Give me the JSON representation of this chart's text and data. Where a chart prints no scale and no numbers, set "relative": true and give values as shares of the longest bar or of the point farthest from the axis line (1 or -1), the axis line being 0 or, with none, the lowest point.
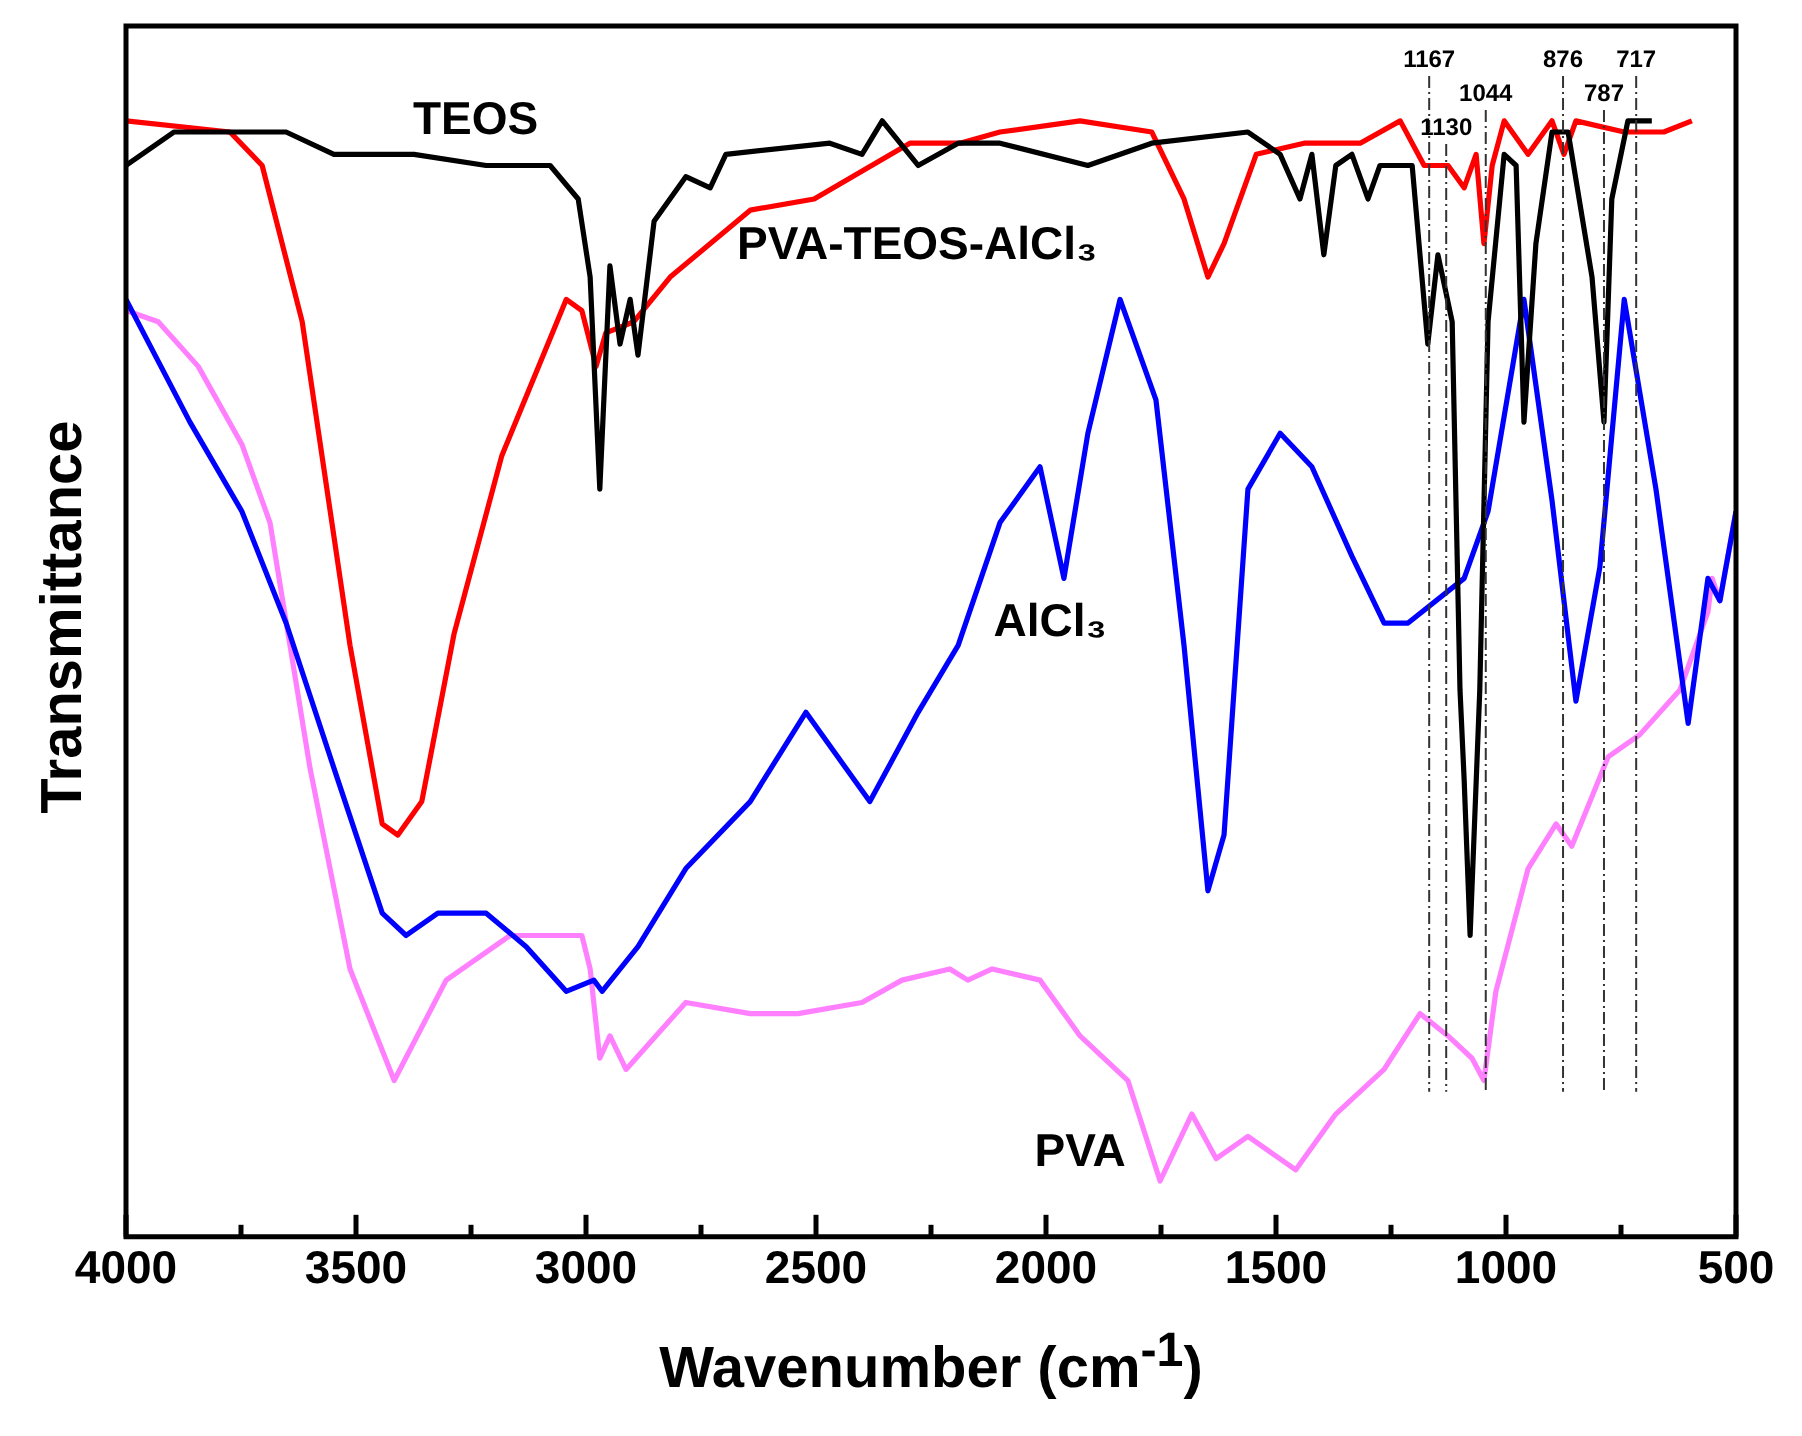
{
  "chart_data": {
    "type": "line",
    "relative": true,
    "marker": "none",
    "line_style": "solid",
    "xlabel": "Wavenumber (cm$^{-1}$)",
    "ylabel": "Transmittance",
    "xlim": [
      4000,
      500
    ],
    "xticks": [
      4000,
      {
        "value": 3750,
        "label": null
      },
      3500,
      {
        "value": 3250,
        "label": null
      },
      3000,
      {
        "value": 2750,
        "label": null
      },
      2500,
      {
        "value": 2250,
        "label": null
      },
      2000,
      {
        "value": 1750,
        "label": null
      },
      1500,
      {
        "value": 1250,
        "label": null
      },
      1000,
      {
        "value": 750,
        "label": null
      },
      500
    ],
    "series": [
      {
        "name": "TEOS",
        "color": "#000000",
        "x": [
          4000,
          3896,
          3757,
          3652,
          3548,
          3374,
          3217,
          3078,
          3017,
          2991,
          2970,
          2948,
          2926,
          2904,
          2887,
          2852,
          2783,
          2730,
          2696,
          2470,
          2400,
          2356,
          2278,
          2191,
          2100,
          1909,
          1770,
          1561,
          1491,
          1448,
          1422,
          1396,
          1370,
          1335,
          1300,
          1274,
          1204,
          1170,
          1148,
          1117,
          1100,
          1091,
          1078,
          1057,
          1039,
          1004,
          978,
          961,
          935,
          900,
          865,
          813,
          787,
          770,
          735,
          683
        ],
        "values": [
          0.96,
          0.99,
          0.99,
          0.99,
          0.97,
          0.97,
          0.96,
          0.96,
          0.93,
          0.86,
          0.67,
          0.87,
          0.8,
          0.84,
          0.79,
          0.91,
          0.95,
          0.94,
          0.97,
          0.98,
          0.97,
          1.0,
          0.96,
          0.98,
          0.98,
          0.96,
          0.98,
          0.99,
          0.97,
          0.93,
          0.97,
          0.88,
          0.96,
          0.97,
          0.93,
          0.96,
          0.96,
          0.8,
          0.88,
          0.82,
          0.49,
          0.41,
          0.27,
          0.49,
          0.82,
          0.97,
          0.96,
          0.73,
          0.89,
          0.99,
          0.99,
          0.86,
          0.73,
          0.93,
          1.0,
          1.0
        ]
      },
      {
        "name": "PVA-TEOS-AlCl₃",
        "color": "#ff0000",
        "x": [
          4000,
          3774,
          3704,
          3617,
          3513,
          3443,
          3409,
          3357,
          3287,
          3183,
          3043,
          3009,
          2978,
          2957,
          2896,
          2817,
          2643,
          2504,
          2296,
          2187,
          2100,
          1926,
          1770,
          1700,
          1648,
          1613,
          1543,
          1439,
          1317,
          1230,
          1178,
          1126,
          1091,
          1065,
          1048,
          1030,
          1004,
          952,
          900,
          874,
          848,
          743,
          657,
          596
        ],
        "values": [
          1.0,
          0.99,
          0.96,
          0.82,
          0.53,
          0.37,
          0.36,
          0.39,
          0.54,
          0.7,
          0.84,
          0.83,
          0.78,
          0.81,
          0.82,
          0.86,
          0.92,
          0.93,
          0.98,
          0.98,
          0.99,
          1.0,
          0.99,
          0.93,
          0.86,
          0.89,
          0.97,
          0.98,
          0.98,
          1.0,
          0.96,
          0.96,
          0.94,
          0.97,
          0.89,
          0.96,
          1.0,
          0.97,
          1.0,
          0.97,
          1.0,
          0.99,
          0.99,
          1.0
        ]
      },
      {
        "name": "AlCl₃",
        "color": "#0000ff",
        "x": [
          4000,
          3861,
          3748,
          3652,
          3548,
          3443,
          3391,
          3322,
          3217,
          3130,
          3043,
          2983,
          2965,
          2887,
          2783,
          2643,
          2522,
          2383,
          2278,
          2191,
          2100,
          2013,
          1961,
          1909,
          1839,
          1761,
          1700,
          1648,
          1613,
          1561,
          1491,
          1422,
          1335,
          1265,
          1213,
          1091,
          1039,
          961,
          900,
          848,
          796,
          743,
          674,
          604,
          561,
          535,
          500
        ],
        "values": [
          0.84,
          0.73,
          0.65,
          0.55,
          0.42,
          0.29,
          0.27,
          0.29,
          0.29,
          0.26,
          0.22,
          0.23,
          0.22,
          0.26,
          0.33,
          0.39,
          0.47,
          0.39,
          0.47,
          0.53,
          0.64,
          0.69,
          0.59,
          0.72,
          0.84,
          0.75,
          0.53,
          0.31,
          0.36,
          0.67,
          0.72,
          0.69,
          0.61,
          0.55,
          0.55,
          0.59,
          0.65,
          0.84,
          0.66,
          0.48,
          0.6,
          0.84,
          0.67,
          0.46,
          0.59,
          0.57,
          0.65
        ]
      },
      {
        "name": "PVA",
        "color": "#ff80ff",
        "x": [
          4000,
          3930,
          3843,
          3748,
          3687,
          3600,
          3513,
          3417,
          3304,
          3165,
          3009,
          2991,
          2970,
          2948,
          2913,
          2783,
          2643,
          2539,
          2400,
          2313,
          2209,
          2170,
          2117,
          2013,
          1926,
          1822,
          1752,
          1683,
          1630,
          1561,
          1457,
          1370,
          1265,
          1187,
          1126,
          1074,
          1048,
          1022,
          952,
          891,
          857,
          778,
          709,
          622,
          561,
          552,
          535,
          500
        ],
        "values": [
          0.83,
          0.82,
          0.78,
          0.71,
          0.64,
          0.42,
          0.24,
          0.14,
          0.23,
          0.27,
          0.27,
          0.24,
          0.16,
          0.18,
          0.15,
          0.21,
          0.2,
          0.2,
          0.21,
          0.23,
          0.24,
          0.23,
          0.24,
          0.23,
          0.18,
          0.14,
          0.05,
          0.11,
          0.07,
          0.09,
          0.06,
          0.11,
          0.15,
          0.2,
          0.18,
          0.16,
          0.14,
          0.22,
          0.33,
          0.37,
          0.35,
          0.43,
          0.45,
          0.49,
          0.56,
          0.59,
          0.57,
          0.65
        ]
      }
    ],
    "ref_lines": [
      {
        "axis": "x",
        "value": 1167,
        "label": "1167",
        "color": "#333333",
        "line_style": "dashed"
      },
      {
        "axis": "x",
        "value": 1130,
        "label": "1130",
        "color": "#333333",
        "line_style": "dashed"
      },
      {
        "axis": "x",
        "value": 1044,
        "label": "1044",
        "color": "#333333",
        "line_style": "dashed"
      },
      {
        "axis": "x",
        "value": 876,
        "label": "876",
        "color": "#333333",
        "line_style": "dashed"
      },
      {
        "axis": "x",
        "value": 787,
        "label": "787",
        "color": "#333333",
        "line_style": "dashed"
      },
      {
        "axis": "x",
        "value": 717,
        "label": "717",
        "color": "#333333",
        "line_style": "dashed"
      }
    ]
  }
}
